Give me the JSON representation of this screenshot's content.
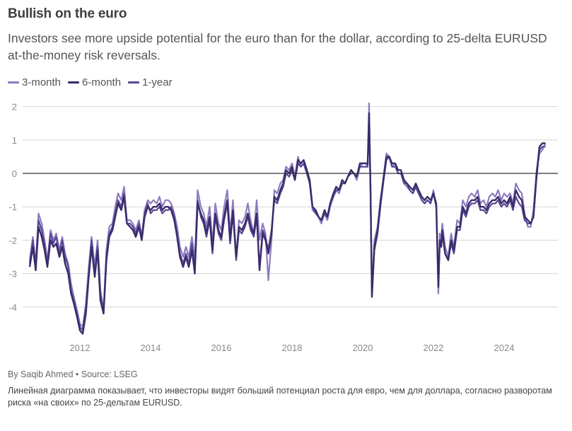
{
  "header": {
    "title": "Bullish on the euro",
    "subtitle": "Investors see more upside potential for the euro than for the dollar, according to 25-delta EURUSD at-the-money risk reversals."
  },
  "legend": [
    {
      "label": "3-month",
      "color": "#8d7cc0"
    },
    {
      "label": "6-month",
      "color": "#3a2c6a"
    },
    {
      "label": "1-year",
      "color": "#5a4895"
    }
  ],
  "footer": {
    "byline": "By Saqib Ahmed • Source: LSEG",
    "description": "Линейная диаграмма показывает, что инвесторы видят больший потенциал роста для евро, чем для доллара, согласно разворотам риска «на своих» по 25-дельтам EURUSD."
  },
  "chart_data": {
    "type": "line",
    "title": "Bullish on the euro",
    "xlabel": "",
    "ylabel": "",
    "xlim": [
      2010.5,
      2025.6
    ],
    "ylim": [
      -4.9,
      2.2
    ],
    "x_ticks": [
      2012,
      2014,
      2016,
      2018,
      2020,
      2022,
      2024
    ],
    "x_tick_labels": [
      "2012",
      "2014",
      "2016",
      "2018",
      "2020",
      "2022",
      "2024"
    ],
    "y_ticks": [
      2,
      1,
      0,
      -1,
      -2,
      -3,
      -4
    ],
    "y_tick_labels": [
      "2",
      "1",
      "0",
      "-1",
      "-2",
      "-3",
      "-4"
    ],
    "grid": true,
    "zero_line": true,
    "legend_position": "top-left",
    "x": [
      2010.58,
      2010.67,
      2010.75,
      2010.83,
      2010.92,
      2011.0,
      2011.08,
      2011.17,
      2011.25,
      2011.33,
      2011.42,
      2011.5,
      2011.58,
      2011.67,
      2011.75,
      2011.83,
      2011.92,
      2012.0,
      2012.08,
      2012.17,
      2012.25,
      2012.33,
      2012.42,
      2012.5,
      2012.58,
      2012.67,
      2012.75,
      2012.83,
      2012.92,
      2013.0,
      2013.08,
      2013.17,
      2013.25,
      2013.33,
      2013.42,
      2013.5,
      2013.58,
      2013.67,
      2013.75,
      2013.83,
      2013.92,
      2014.0,
      2014.08,
      2014.17,
      2014.25,
      2014.33,
      2014.42,
      2014.5,
      2014.58,
      2014.67,
      2014.75,
      2014.83,
      2014.92,
      2015.0,
      2015.08,
      2015.17,
      2015.25,
      2015.33,
      2015.42,
      2015.5,
      2015.58,
      2015.67,
      2015.75,
      2015.83,
      2015.92,
      2016.0,
      2016.08,
      2016.17,
      2016.25,
      2016.33,
      2016.42,
      2016.5,
      2016.58,
      2016.67,
      2016.75,
      2016.83,
      2016.92,
      2017.0,
      2017.08,
      2017.17,
      2017.25,
      2017.33,
      2017.42,
      2017.5,
      2017.58,
      2017.67,
      2017.75,
      2017.83,
      2017.92,
      2018.0,
      2018.08,
      2018.17,
      2018.25,
      2018.33,
      2018.42,
      2018.5,
      2018.58,
      2018.67,
      2018.75,
      2018.83,
      2018.92,
      2019.0,
      2019.08,
      2019.17,
      2019.25,
      2019.33,
      2019.42,
      2019.5,
      2019.58,
      2019.67,
      2019.75,
      2019.83,
      2019.92,
      2020.0,
      2020.08,
      2020.14,
      2020.18,
      2020.22,
      2020.26,
      2020.33,
      2020.42,
      2020.5,
      2020.58,
      2020.67,
      2020.75,
      2020.83,
      2020.92,
      2021.0,
      2021.08,
      2021.17,
      2021.25,
      2021.33,
      2021.42,
      2021.5,
      2021.58,
      2021.67,
      2021.75,
      2021.83,
      2021.92,
      2022.0,
      2022.08,
      2022.14,
      2022.18,
      2022.22,
      2022.25,
      2022.33,
      2022.42,
      2022.5,
      2022.58,
      2022.67,
      2022.75,
      2022.83,
      2022.92,
      2023.0,
      2023.08,
      2023.17,
      2023.25,
      2023.33,
      2023.42,
      2023.5,
      2023.58,
      2023.67,
      2023.75,
      2023.83,
      2023.92,
      2024.0,
      2024.08,
      2024.17,
      2024.25,
      2024.33,
      2024.42,
      2024.5,
      2024.58,
      2024.67,
      2024.75,
      2024.83,
      2024.92,
      2025.0,
      2025.08,
      2025.17,
      2025.25,
      2025.33
    ],
    "series": [
      {
        "name": "3-month",
        "color": "#8d7cc0",
        "values": [
          -2.6,
          -1.9,
          -2.7,
          -1.2,
          -1.5,
          -2.0,
          -2.6,
          -1.7,
          -2.0,
          -1.8,
          -2.3,
          -1.9,
          -2.4,
          -2.7,
          -3.3,
          -3.7,
          -4.1,
          -4.5,
          -4.6,
          -3.9,
          -2.8,
          -1.9,
          -2.8,
          -2.0,
          -3.5,
          -4.1,
          -2.3,
          -1.6,
          -1.5,
          -1.0,
          -0.6,
          -0.8,
          -0.4,
          -1.4,
          -1.4,
          -1.5,
          -1.7,
          -1.4,
          -1.9,
          -1.1,
          -0.8,
          -0.9,
          -0.8,
          -0.9,
          -0.7,
          -1.0,
          -0.8,
          -0.8,
          -0.9,
          -1.2,
          -1.6,
          -2.2,
          -2.5,
          -2.2,
          -2.5,
          -1.9,
          -2.6,
          -0.5,
          -1.0,
          -1.2,
          -1.6,
          -1.0,
          -2.1,
          -0.9,
          -1.5,
          -1.7,
          -1.0,
          -0.5,
          -1.8,
          -0.8,
          -2.6,
          -1.4,
          -1.5,
          -1.3,
          -0.9,
          -1.4,
          -1.8,
          -0.8,
          -2.0,
          -1.5,
          -1.8,
          -3.2,
          -2.0,
          -0.5,
          -0.6,
          -0.3,
          -0.2,
          0.2,
          0.1,
          0.3,
          -0.1,
          0.5,
          0.2,
          0.3,
          0.0,
          -0.3,
          -1.1,
          -1.2,
          -1.3,
          -1.5,
          -1.2,
          -1.4,
          -1.0,
          -0.7,
          -0.5,
          -0.6,
          -0.3,
          -0.3,
          -0.1,
          0.1,
          0.0,
          -0.2,
          0.2,
          0.3,
          0.3,
          0.2,
          2.1,
          -0.5,
          -3.5,
          -2.0,
          -1.6,
          -0.8,
          -0.2,
          0.6,
          0.5,
          0.2,
          0.3,
          0.0,
          0.0,
          -0.3,
          -0.4,
          -0.5,
          -0.6,
          -0.4,
          -0.6,
          -0.8,
          -0.9,
          -0.8,
          -0.9,
          -0.5,
          -1.0,
          -3.6,
          -1.8,
          -2.0,
          -1.5,
          -2.2,
          -2.5,
          -1.8,
          -2.2,
          -1.4,
          -1.5,
          -0.8,
          -1.0,
          -0.7,
          -0.6,
          -0.7,
          -0.5,
          -0.9,
          -0.8,
          -1.0,
          -0.7,
          -0.6,
          -0.7,
          -0.5,
          -0.8,
          -0.6,
          -0.7,
          -0.6,
          -0.9,
          -0.3,
          -0.5,
          -0.6,
          -1.2,
          -1.6,
          -1.6,
          -1.1,
          0.1,
          0.6,
          0.7,
          0.9
        ]
      },
      {
        "name": "6-month",
        "color": "#3a2c6a",
        "values": [
          -2.8,
          -2.2,
          -2.9,
          -1.6,
          -1.9,
          -2.3,
          -2.8,
          -2.0,
          -2.2,
          -2.1,
          -2.5,
          -2.2,
          -2.7,
          -3.0,
          -3.6,
          -3.9,
          -4.3,
          -4.7,
          -4.8,
          -4.2,
          -3.1,
          -2.2,
          -3.1,
          -2.3,
          -3.8,
          -4.2,
          -2.6,
          -1.9,
          -1.7,
          -1.3,
          -0.9,
          -1.1,
          -0.7,
          -1.5,
          -1.6,
          -1.7,
          -1.9,
          -1.6,
          -2.0,
          -1.3,
          -1.0,
          -1.1,
          -1.0,
          -1.0,
          -0.9,
          -1.1,
          -1.0,
          -1.0,
          -1.1,
          -1.4,
          -1.9,
          -2.5,
          -2.8,
          -2.5,
          -2.8,
          -2.3,
          -3.0,
          -0.9,
          -1.2,
          -1.4,
          -1.8,
          -1.3,
          -2.3,
          -1.2,
          -1.7,
          -1.9,
          -1.3,
          -0.8,
          -2.0,
          -1.1,
          -2.5,
          -1.6,
          -1.7,
          -1.5,
          -1.2,
          -1.6,
          -1.8,
          -1.2,
          -2.9,
          -1.8,
          -2.0,
          -2.4,
          -1.8,
          -0.7,
          -0.8,
          -0.5,
          -0.3,
          0.1,
          0.0,
          0.2,
          -0.2,
          0.4,
          0.3,
          0.4,
          0.1,
          -0.2,
          -1.0,
          -1.1,
          -1.3,
          -1.4,
          -1.1,
          -1.3,
          -0.9,
          -0.6,
          -0.4,
          -0.5,
          -0.2,
          -0.3,
          -0.1,
          0.1,
          0.0,
          -0.1,
          0.3,
          0.3,
          0.3,
          0.3,
          1.8,
          -0.4,
          -3.7,
          -2.2,
          -1.7,
          -0.9,
          -0.2,
          0.5,
          0.5,
          0.3,
          0.3,
          0.1,
          0.1,
          -0.2,
          -0.3,
          -0.4,
          -0.5,
          -0.3,
          -0.5,
          -0.7,
          -0.8,
          -0.7,
          -0.8,
          -0.6,
          -0.9,
          -3.4,
          -2.0,
          -2.2,
          -1.7,
          -2.4,
          -2.6,
          -2.0,
          -2.3,
          -1.6,
          -1.6,
          -1.0,
          -1.2,
          -0.9,
          -0.8,
          -0.8,
          -0.7,
          -1.0,
          -1.0,
          -1.1,
          -0.9,
          -0.8,
          -0.8,
          -0.7,
          -0.9,
          -0.8,
          -0.9,
          -0.7,
          -1.0,
          -0.5,
          -0.7,
          -0.8,
          -1.3,
          -1.4,
          -1.5,
          -1.3,
          0.0,
          0.8,
          0.9,
          0.9
        ]
      },
      {
        "name": "1-year",
        "color": "#5a4895",
        "values": [
          -2.7,
          -2.0,
          -2.8,
          -1.4,
          -1.7,
          -2.1,
          -2.7,
          -1.8,
          -2.1,
          -1.9,
          -2.4,
          -2.0,
          -2.5,
          -2.8,
          -3.5,
          -3.8,
          -4.2,
          -4.6,
          -4.7,
          -4.0,
          -3.0,
          -2.0,
          -3.0,
          -2.2,
          -3.6,
          -4.1,
          -2.5,
          -1.8,
          -1.6,
          -1.2,
          -0.8,
          -1.0,
          -0.6,
          -1.5,
          -1.5,
          -1.6,
          -1.8,
          -1.5,
          -1.9,
          -1.2,
          -0.9,
          -1.2,
          -1.1,
          -1.1,
          -1.0,
          -1.2,
          -1.1,
          -1.1,
          -1.0,
          -1.3,
          -1.8,
          -2.4,
          -2.7,
          -2.4,
          -2.7,
          -2.1,
          -2.8,
          -0.8,
          -1.3,
          -1.5,
          -1.9,
          -1.4,
          -2.4,
          -1.3,
          -1.8,
          -2.0,
          -1.4,
          -0.9,
          -2.1,
          -1.2,
          -2.6,
          -1.7,
          -1.8,
          -1.6,
          -1.3,
          -1.7,
          -1.9,
          -1.3,
          -2.8,
          -1.7,
          -1.9,
          -2.3,
          -1.7,
          -0.8,
          -0.9,
          -0.6,
          -0.4,
          0.0,
          -0.1,
          0.1,
          -0.2,
          0.3,
          0.2,
          0.3,
          0.0,
          -0.3,
          -1.0,
          -1.2,
          -1.3,
          -1.4,
          -1.2,
          -1.3,
          -0.9,
          -0.7,
          -0.5,
          -0.5,
          -0.3,
          -0.3,
          -0.1,
          0.0,
          0.0,
          -0.1,
          0.2,
          0.2,
          0.2,
          0.2,
          1.6,
          -0.5,
          -3.6,
          -2.3,
          -1.8,
          -1.0,
          -0.3,
          0.4,
          0.5,
          0.2,
          0.2,
          0.0,
          0.0,
          -0.3,
          -0.3,
          -0.5,
          -0.6,
          -0.4,
          -0.6,
          -0.8,
          -0.9,
          -0.8,
          -0.9,
          -0.6,
          -1.0,
          -3.3,
          -2.0,
          -2.2,
          -1.8,
          -2.4,
          -2.6,
          -2.1,
          -2.4,
          -1.7,
          -1.7,
          -1.1,
          -1.3,
          -1.0,
          -0.9,
          -0.9,
          -0.8,
          -1.1,
          -1.1,
          -1.2,
          -1.0,
          -0.9,
          -0.9,
          -0.8,
          -1.0,
          -0.9,
          -1.0,
          -0.8,
          -1.1,
          -0.7,
          -0.9,
          -1.0,
          -1.4,
          -1.5,
          -1.5,
          -1.3,
          -0.1,
          0.7,
          0.8,
          0.8
        ]
      }
    ]
  }
}
